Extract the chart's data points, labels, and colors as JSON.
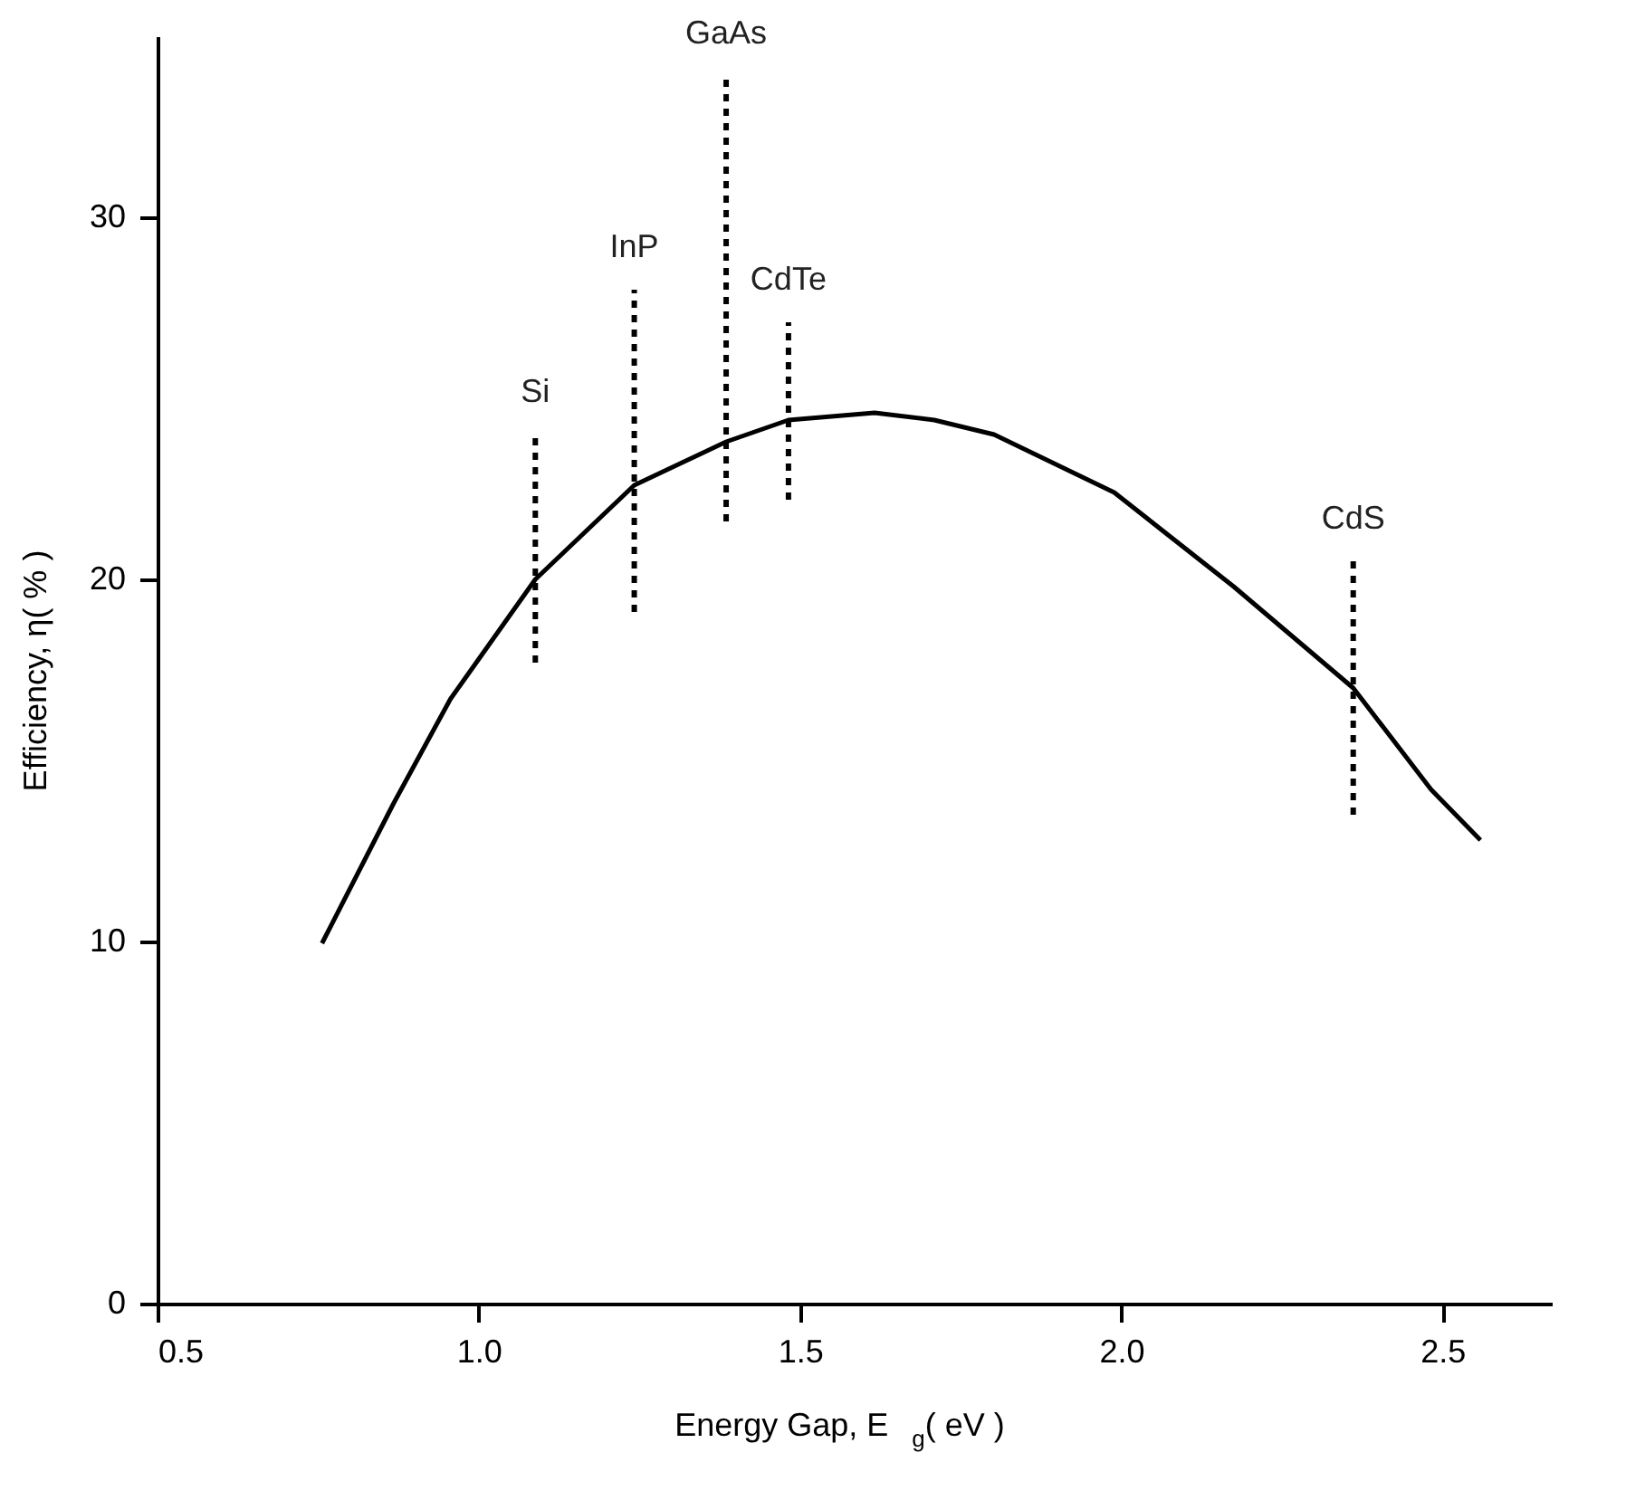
{
  "chart_data": {
    "type": "line",
    "xlabel": "Energy Gap, E$_{g}$( eV )",
    "ylabel": "Efficiency, η( % )",
    "xlim": [
      0.5,
      2.67
    ],
    "ylim": [
      0,
      35
    ],
    "xticks": [
      {
        "value": 0.5,
        "label": "0.5"
      },
      {
        "value": 1,
        "label": "1.0"
      },
      {
        "value": 1.5,
        "label": "1.5"
      },
      {
        "value": 2,
        "label": "2.0"
      },
      {
        "value": 2.5,
        "label": "2.5"
      }
    ],
    "yticks": [
      0,
      10,
      20,
      30
    ],
    "grid": false,
    "series": [
      {
        "color": "#000000",
        "line_style": "solid",
        "x": [
          0.756,
          0.867,
          0.956,
          1.088,
          1.242,
          1.385,
          1.482,
          1.616,
          1.709,
          1.802,
          1.989,
          2.175,
          2.361,
          2.482,
          2.559
        ],
        "values": [
          9.95,
          13.8,
          16.7,
          20.0,
          22.6,
          23.8,
          24.4,
          24.6,
          24.4,
          24.0,
          22.4,
          19.8,
          17.0,
          14.2,
          12.8
        ]
      },
      {
        "name": "Si",
        "color": "#000000",
        "line_style": "dotted",
        "x": [
          1.088,
          1.088
        ],
        "values": [
          17.7,
          24.0
        ]
      },
      {
        "name": "InP",
        "color": "#000000",
        "line_style": "dotted",
        "x": [
          1.242,
          1.242
        ],
        "values": [
          19.1,
          28.0
        ]
      },
      {
        "name": "GaAs",
        "color": "#000000",
        "line_style": "dotted",
        "x": [
          1.385,
          1.385
        ],
        "values": [
          21.6,
          33.9
        ]
      },
      {
        "name": "CdTe",
        "color": "#000000",
        "line_style": "dotted",
        "x": [
          1.482,
          1.482
        ],
        "values": [
          22.2,
          27.1
        ]
      },
      {
        "name": "CdS",
        "color": "#000000",
        "line_style": "dotted",
        "x": [
          2.361,
          2.361
        ],
        "values": [
          13.5,
          20.5
        ]
      }
    ]
  }
}
